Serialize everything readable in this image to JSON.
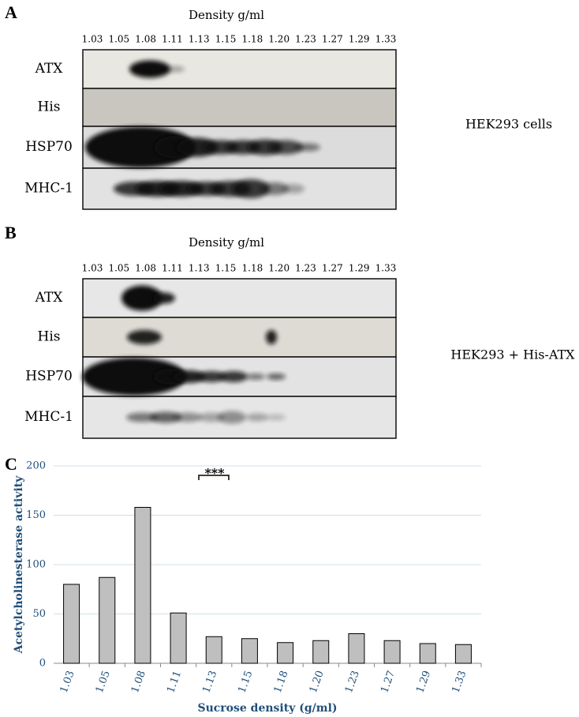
{
  "panels": [
    {
      "label": "A",
      "density_title": "Density g/ml",
      "densities": [
        "1.03",
        "1.05",
        "1.08",
        "1.11",
        "1.13",
        "1.15",
        "1.18",
        "1.20",
        "1.23",
        "1.27",
        "1.29",
        "1.33"
      ],
      "blots": [
        "ATX",
        "His",
        "HSP70",
        "MHC-1"
      ],
      "condition": "HEK293 cells"
    },
    {
      "label": "B",
      "density_title": "Density g/ml",
      "densities": [
        "1.03",
        "1.05",
        "1.08",
        "1.11",
        "1.13",
        "1.15",
        "1.18",
        "1.20",
        "1.23",
        "1.27",
        "1.29",
        "1.33"
      ],
      "blots": [
        "ATX",
        "His",
        "HSP70",
        "MHC-1"
      ],
      "condition": "HEK293 + His-ATX"
    }
  ],
  "chart_data": {
    "label": "C",
    "type": "bar",
    "categories": [
      "1.03",
      "1.05",
      "1.08",
      "1.11",
      "1.13",
      "1.15",
      "1.18",
      "1.20",
      "1.23",
      "1.27",
      "1.29",
      "1.33"
    ],
    "values": [
      80,
      87,
      158,
      51,
      27,
      25,
      21,
      23,
      30,
      23,
      20,
      19
    ],
    "color": "#bfbfbf",
    "ylim": [
      0,
      200
    ],
    "yticks": [
      0,
      50,
      100,
      150,
      200
    ],
    "grid": true,
    "ylabel": "Acetylcholinesterase activity",
    "xlabel": "Sucrose density (g/ml)",
    "annotation": "***"
  }
}
